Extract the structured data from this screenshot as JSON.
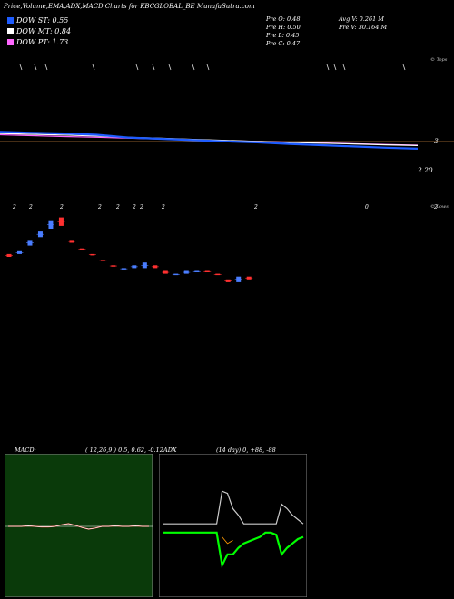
{
  "chart_data": {
    "type": "line",
    "title": "Price,Volume,EMA,ADX,MACD Charts for KBCGLOBAL_BE MunafaSutra.com",
    "legend": [
      {
        "label": "DOW ST: 0.55",
        "color": "#1e5cff"
      },
      {
        "label": "DOW MT: 0.84",
        "color": "#ffffff"
      },
      {
        "label": "DOW PT: 1.73",
        "color": "#ff66ff"
      }
    ],
    "stats": {
      "o": "Pre  O: 0.48",
      "h": "Pre  H: 0.50",
      "l": "Pre  L: 0.45",
      "c": "Pre  C: 0.47",
      "avg_v": "Avg V: 0.261  M",
      "pre_v": "Pre  V: 30.164  M"
    },
    "price_axis_labels": {
      "mark": "3",
      "last": "2.20"
    },
    "corner_labels": {
      "top": "© Tops",
      "lows": "© Lows"
    },
    "volume_row_labels": [
      "2",
      "2",
      "2",
      "2",
      "2",
      "2",
      "2",
      "2",
      "2",
      "0",
      "2"
    ],
    "ema_series": [
      {
        "name": "",
        "color": "#ff66ff",
        "values": [
          1.82,
          1.75,
          1.68,
          1.62,
          1.55,
          1.48,
          1.42,
          1.36,
          1.3,
          1.24,
          1.18,
          1.12,
          1.06,
          1.0
        ]
      },
      {
        "name": "",
        "color": "#ffffff",
        "values": [
          1.92,
          1.86,
          1.8,
          1.72,
          1.62,
          1.54,
          1.46,
          1.38,
          1.3,
          1.22,
          1.16,
          1.1,
          1.03,
          0.97
        ]
      },
      {
        "name": "",
        "color": "#1e5cff",
        "values": [
          2.05,
          1.98,
          1.92,
          1.82,
          1.6,
          1.5,
          1.4,
          1.3,
          1.22,
          1.1,
          1.0,
          0.9,
          0.8,
          0.72
        ]
      }
    ],
    "candles": [
      {
        "o": 0.7,
        "c": 0.71,
        "col": "#ff3030"
      },
      {
        "o": 0.71,
        "c": 0.72,
        "col": "#4a7dff"
      },
      {
        "o": 0.74,
        "c": 0.76,
        "col": "#4a7dff"
      },
      {
        "o": 0.77,
        "c": 0.79,
        "col": "#4a7dff"
      },
      {
        "o": 0.8,
        "c": 0.83,
        "col": "#4a7dff"
      },
      {
        "o": 0.84,
        "c": 0.81,
        "col": "#ff3030"
      },
      {
        "o": 0.76,
        "c": 0.75,
        "col": "#ff3030"
      },
      {
        "o": 0.73,
        "c": 0.73,
        "col": "#ff3030"
      },
      {
        "o": 0.71,
        "c": 0.71,
        "col": "#ff3030"
      },
      {
        "o": 0.69,
        "c": 0.69,
        "col": "#ff3030"
      },
      {
        "o": 0.67,
        "c": 0.67,
        "col": "#ff3030"
      },
      {
        "o": 0.66,
        "c": 0.66,
        "col": "#4a7dff"
      },
      {
        "o": 0.66,
        "c": 0.67,
        "col": "#4a7dff"
      },
      {
        "o": 0.66,
        "c": 0.68,
        "col": "#4a7dff"
      },
      {
        "o": 0.67,
        "c": 0.66,
        "col": "#ff3030"
      },
      {
        "o": 0.65,
        "c": 0.64,
        "col": "#ff3030"
      },
      {
        "o": 0.64,
        "c": 0.64,
        "col": "#4a7dff"
      },
      {
        "o": 0.64,
        "c": 0.65,
        "col": "#4a7dff"
      },
      {
        "o": 0.65,
        "c": 0.65,
        "col": "#4a7dff"
      },
      {
        "o": 0.65,
        "c": 0.65,
        "col": "#ff3030"
      },
      {
        "o": 0.64,
        "c": 0.64,
        "col": "#ff3030"
      },
      {
        "o": 0.62,
        "c": 0.61,
        "col": "#ff3030"
      },
      {
        "o": 0.61,
        "c": 0.63,
        "col": "#4a7dff"
      },
      {
        "o": 0.63,
        "c": 0.62,
        "col": "#ff3030"
      },
      {
        "o": 0.45,
        "c": 0.45,
        "col": "#4a7dff"
      },
      {
        "o": 0.45,
        "c": 0.46,
        "col": "#4a7dff"
      },
      {
        "o": 0.45,
        "c": 0.44,
        "col": "#ff3030"
      },
      {
        "o": 0.44,
        "c": 0.45,
        "col": "#4a7dff"
      },
      {
        "o": 0.45,
        "c": 0.43,
        "col": "#ff3030"
      },
      {
        "o": 0.43,
        "c": 0.42,
        "col": "#ff3030"
      },
      {
        "o": 0.42,
        "c": 0.42,
        "col": "#ff3030"
      },
      {
        "o": 0.42,
        "c": 0.43,
        "col": "#4a7dff"
      },
      {
        "o": 0.43,
        "c": 0.44,
        "col": "#4a7dff"
      },
      {
        "o": 0.44,
        "c": 0.43,
        "col": "#ff3030"
      },
      {
        "o": 0.43,
        "c": 0.43,
        "col": "#ff3030"
      },
      {
        "o": 0.43,
        "c": 0.42,
        "col": "#ff3030"
      },
      {
        "o": 0.42,
        "c": 0.45,
        "col": "#4a7dff"
      },
      {
        "o": 0.45,
        "c": 0.48,
        "col": "#4a7dff"
      },
      {
        "o": 0.48,
        "c": 0.46,
        "col": "#ff3030"
      },
      {
        "o": 0.46,
        "c": 0.45,
        "col": "#ff3030"
      }
    ],
    "macd": {
      "header": "MACD:",
      "params": "( 12,26,9 ) 0.5, 0.62, -0.12",
      "values": [
        0.0,
        0.0,
        0.0,
        0.01,
        0.0,
        -0.01,
        -0.01,
        0.0,
        0.03,
        0.05,
        0.02,
        -0.02,
        -0.05,
        -0.03,
        0.0,
        0.0,
        0.01,
        0.0,
        0.0,
        0.01,
        0.0,
        0.0
      ]
    },
    "adx": {
      "header": "ADX",
      "params": "(14  day) 0, +88, -88",
      "plus": [
        10,
        10,
        10,
        10,
        10,
        10,
        10,
        10,
        10,
        10,
        10,
        85,
        80,
        45,
        30,
        10,
        10,
        10,
        10,
        10,
        10,
        10,
        55,
        45,
        30,
        20,
        10
      ],
      "minus": [
        -10,
        -10,
        -10,
        -10,
        -10,
        -10,
        -10,
        -10,
        -10,
        -10,
        -10,
        -85,
        -60,
        -60,
        -45,
        -35,
        -30,
        -25,
        -20,
        -10,
        -10,
        -15,
        -60,
        -45,
        -35,
        -25,
        -20
      ]
    }
  }
}
